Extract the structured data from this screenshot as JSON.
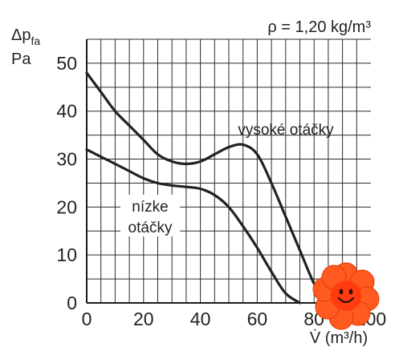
{
  "chart_data": {
    "type": "line",
    "annotation": "ρ = 1,20 kg/m³",
    "ylabel": {
      "symbol": "Δp",
      "subscript": "fa",
      "unit": "Pa"
    },
    "xlabel": "V̇ (m³/h)",
    "xlim": [
      0,
      100
    ],
    "ylim": [
      0,
      55
    ],
    "x_ticks": [
      "0",
      "20",
      "40",
      "60",
      "80",
      "100"
    ],
    "y_ticks": [
      "0",
      "10",
      "20",
      "30",
      "40",
      "50"
    ],
    "grid": true,
    "series": [
      {
        "name": "vysoké otáčky",
        "x": [
          0,
          5,
          10,
          15,
          20,
          25,
          30,
          35,
          40,
          45,
          50,
          55,
          60,
          65,
          70,
          75,
          80,
          84
        ],
        "y": [
          48,
          44,
          40,
          37,
          34,
          31,
          29.5,
          29,
          29.5,
          31,
          32.5,
          33,
          31,
          25,
          18,
          11,
          4,
          0
        ]
      },
      {
        "name": "nízke otáčky",
        "x": [
          0,
          5,
          10,
          15,
          20,
          25,
          30,
          35,
          40,
          45,
          50,
          55,
          60,
          65,
          70,
          75
        ],
        "y": [
          32,
          30.5,
          29,
          27.5,
          26,
          25,
          24.5,
          24.2,
          23.8,
          22.5,
          20,
          16,
          11.5,
          6.5,
          2,
          0
        ]
      }
    ],
    "labels": {
      "high": "vysoké otáčky",
      "low_line1": "nízke",
      "low_line2": "otáčky"
    }
  }
}
